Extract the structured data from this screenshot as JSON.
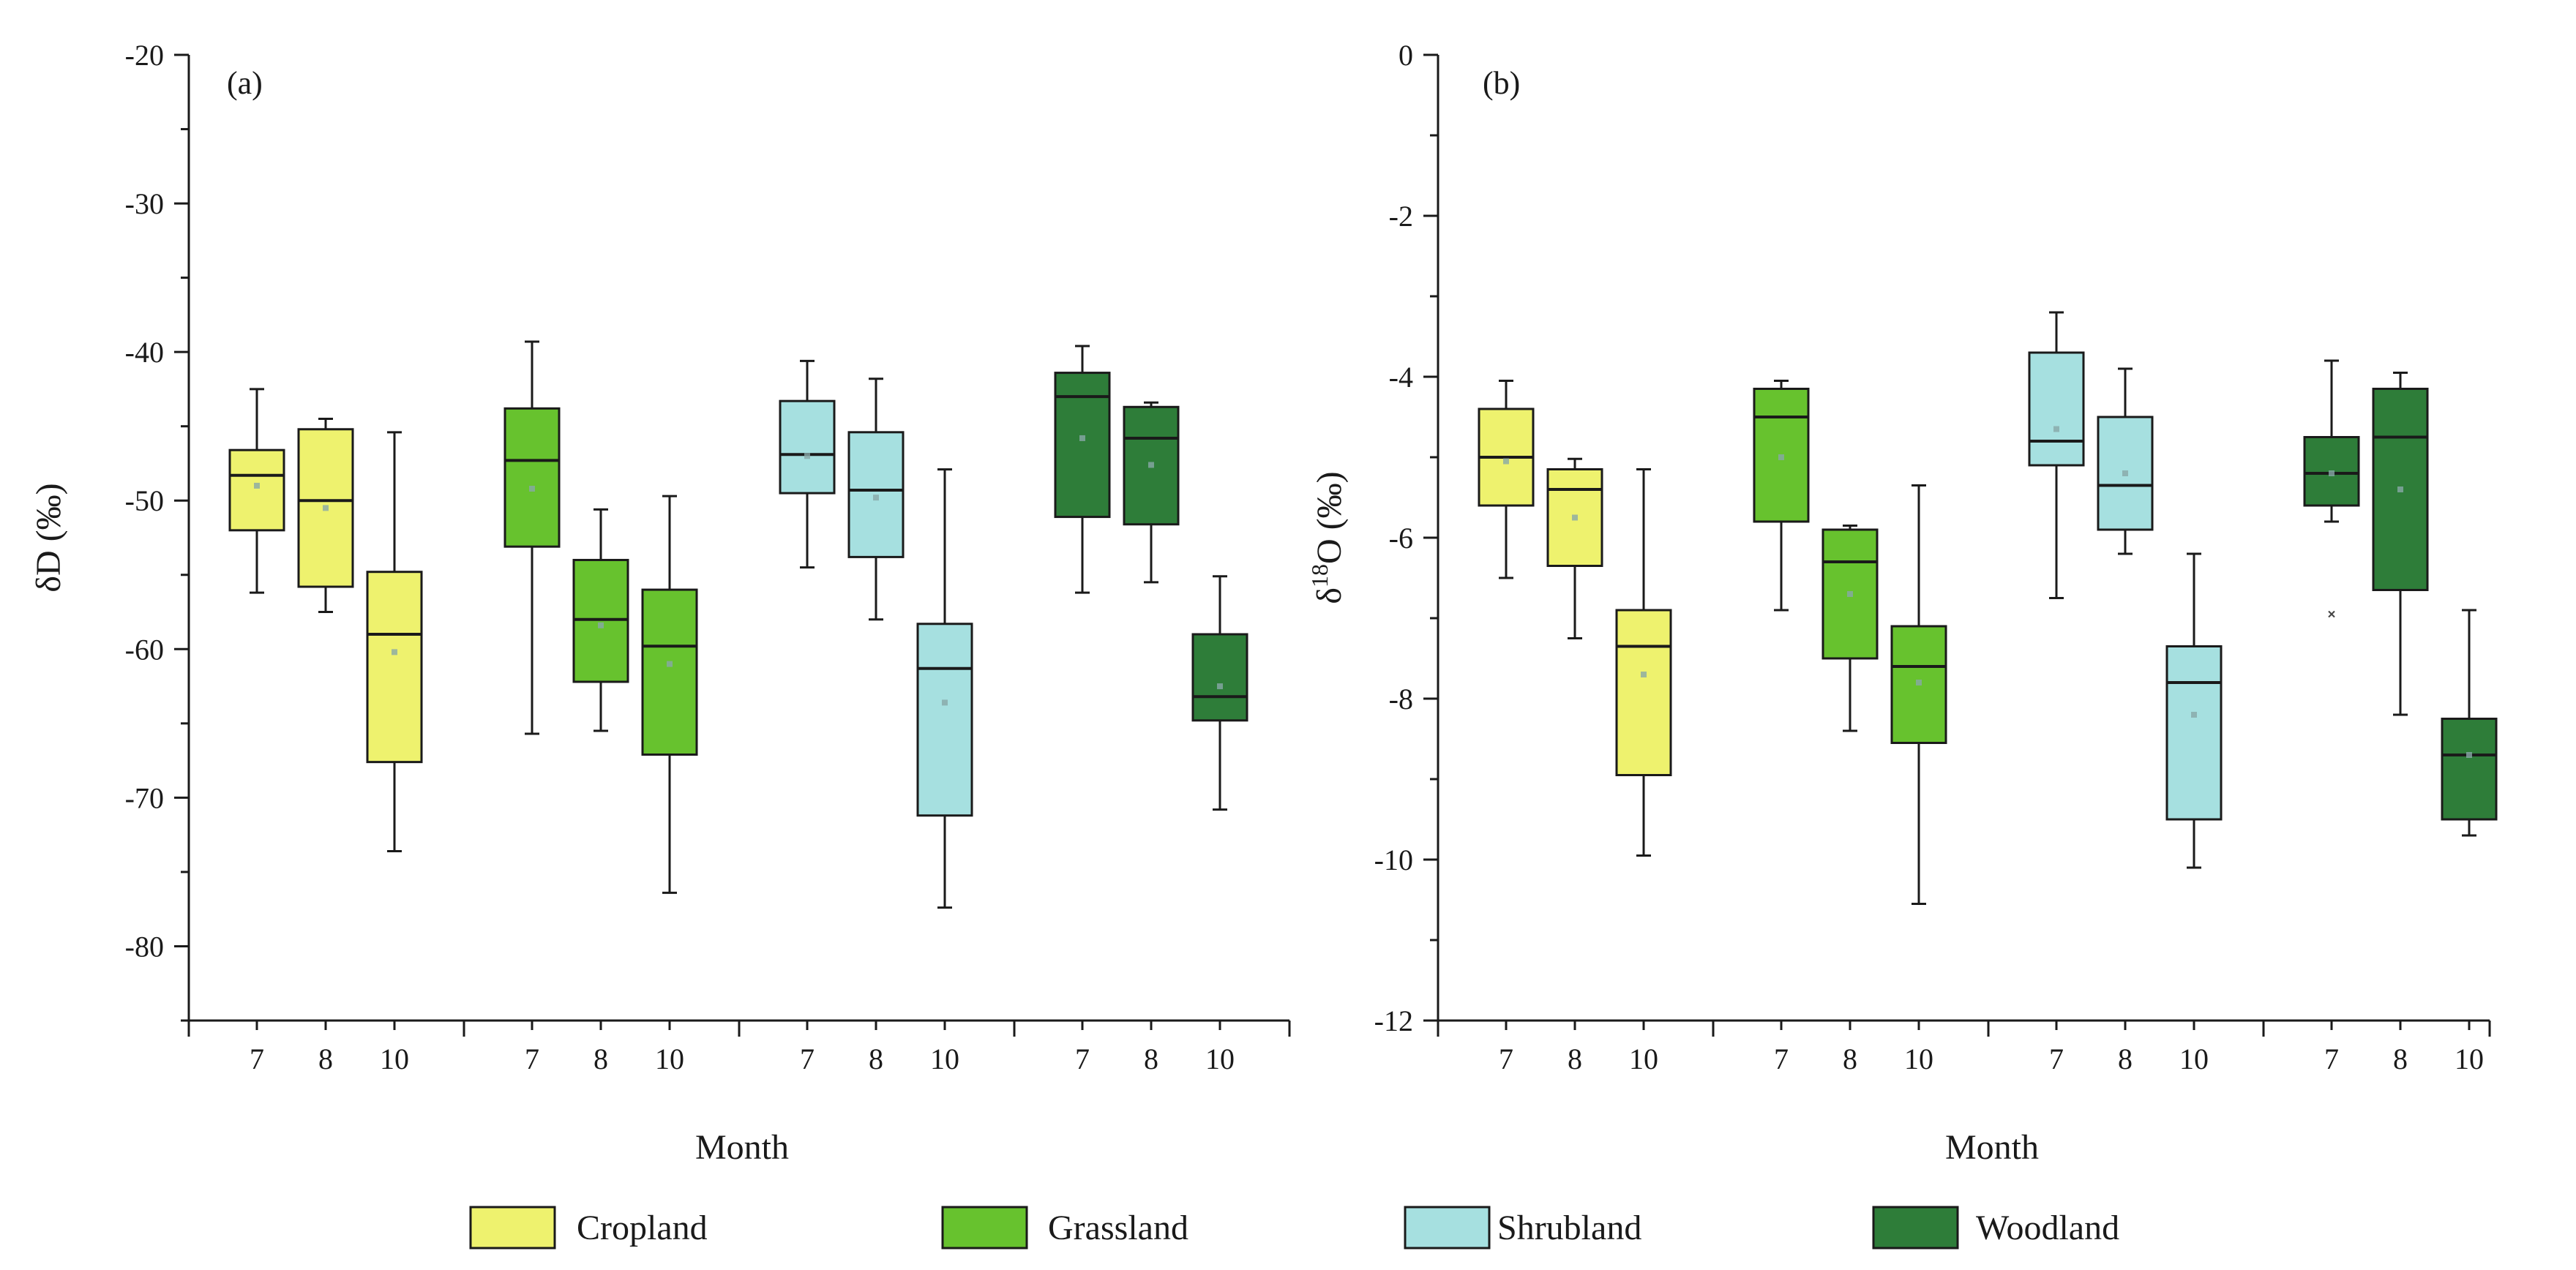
{
  "chart_data": [
    {
      "type": "box",
      "panel_label": "(a)",
      "ylabel": "δD (‰)",
      "xlabel": "Month",
      "ylim": [
        -85,
        -20
      ],
      "yticks": [
        -80,
        -70,
        -60,
        -50,
        -40,
        -30,
        -20
      ],
      "ytick_labels": [
        "-80",
        "-70",
        "-60",
        "-50",
        "-40",
        "-30",
        "-20"
      ],
      "minor_step": 5,
      "month_labels": [
        "7",
        "8",
        "10"
      ],
      "groups": [
        {
          "name": "Cropland",
          "color": "#eef26e",
          "boxes": [
            {
              "month": "7",
              "whisker_low": -56.2,
              "q1": -52.0,
              "median": -48.3,
              "q3": -46.6,
              "whisker_high": -42.5,
              "mean": -49.0
            },
            {
              "month": "8",
              "whisker_low": -57.5,
              "q1": -55.8,
              "median": -50.0,
              "q3": -45.2,
              "whisker_high": -44.5,
              "mean": -50.5
            },
            {
              "month": "10",
              "whisker_low": -73.6,
              "q1": -67.6,
              "median": -59.0,
              "q3": -54.8,
              "whisker_high": -45.4,
              "mean": -60.2
            }
          ]
        },
        {
          "name": "Grassland",
          "color": "#67c22e",
          "boxes": [
            {
              "month": "7",
              "whisker_low": -65.7,
              "q1": -53.1,
              "median": -47.3,
              "q3": -43.8,
              "whisker_high": -39.3,
              "mean": -49.2
            },
            {
              "month": "8",
              "whisker_low": -65.5,
              "q1": -62.2,
              "median": -58.0,
              "q3": -54.0,
              "whisker_high": -50.6,
              "mean": -58.4
            },
            {
              "month": "10",
              "whisker_low": -76.4,
              "q1": -67.1,
              "median": -59.8,
              "q3": -56.0,
              "whisker_high": -49.7,
              "mean": -61.0
            }
          ]
        },
        {
          "name": "Shrubland",
          "color": "#a6e0e0",
          "boxes": [
            {
              "month": "7",
              "whisker_low": -54.5,
              "q1": -49.5,
              "median": -46.9,
              "q3": -43.3,
              "whisker_high": -40.6,
              "mean": -47.0
            },
            {
              "month": "8",
              "whisker_low": -58.0,
              "q1": -53.8,
              "median": -49.3,
              "q3": -45.4,
              "whisker_high": -41.8,
              "mean": -49.8
            },
            {
              "month": "10",
              "whisker_low": -77.4,
              "q1": -71.2,
              "median": -61.3,
              "q3": -58.3,
              "whisker_high": -47.9,
              "mean": -63.6
            }
          ]
        },
        {
          "name": "Woodland",
          "color": "#2e7d39",
          "boxes": [
            {
              "month": "7",
              "whisker_low": -56.2,
              "q1": -51.1,
              "median": -43.0,
              "q3": -41.4,
              "whisker_high": -39.6,
              "mean": -45.8
            },
            {
              "month": "8",
              "whisker_low": -55.5,
              "q1": -51.6,
              "median": -45.8,
              "q3": -43.7,
              "whisker_high": -43.4,
              "mean": -47.6
            },
            {
              "month": "10",
              "whisker_low": -70.8,
              "q1": -64.8,
              "median": -63.2,
              "q3": -59.0,
              "whisker_high": -55.1,
              "mean": -62.5
            }
          ]
        }
      ]
    },
    {
      "type": "box",
      "panel_label": "(b)",
      "ylabel": "δ18O (‰)",
      "ylabel_base": "δ",
      "ylabel_sup": "18",
      "ylabel_rest": "O (‰)",
      "xlabel": "Month",
      "ylim": [
        -12,
        0
      ],
      "yticks": [
        -12,
        -10,
        -8,
        -6,
        -4,
        -2,
        0
      ],
      "ytick_labels": [
        "-12",
        "-10",
        "-8",
        "-6",
        "-4",
        "-2",
        "0"
      ],
      "minor_step": 1,
      "month_labels": [
        "7",
        "8",
        "10"
      ],
      "groups": [
        {
          "name": "Cropland",
          "color": "#eef26e",
          "boxes": [
            {
              "month": "7",
              "whisker_low": -6.5,
              "q1": -5.6,
              "median": -5.0,
              "q3": -4.4,
              "whisker_high": -4.05,
              "mean": -5.05
            },
            {
              "month": "8",
              "whisker_low": -7.25,
              "q1": -6.35,
              "median": -5.4,
              "q3": -5.15,
              "whisker_high": -5.02,
              "mean": -5.75
            },
            {
              "month": "10",
              "whisker_low": -9.95,
              "q1": -8.95,
              "median": -7.35,
              "q3": -6.9,
              "whisker_high": -5.15,
              "mean": -7.7
            }
          ]
        },
        {
          "name": "Grassland",
          "color": "#67c22e",
          "boxes": [
            {
              "month": "7",
              "whisker_low": -6.9,
              "q1": -5.8,
              "median": -4.5,
              "q3": -4.15,
              "whisker_high": -4.05,
              "mean": -5.0
            },
            {
              "month": "8",
              "whisker_low": -8.4,
              "q1": -7.5,
              "median": -6.3,
              "q3": -5.9,
              "whisker_high": -5.85,
              "mean": -6.7
            },
            {
              "month": "10",
              "whisker_low": -10.55,
              "q1": -8.55,
              "median": -7.6,
              "q3": -7.1,
              "whisker_high": -5.35,
              "mean": -7.8
            }
          ]
        },
        {
          "name": "Shrubland",
          "color": "#a6e0e0",
          "boxes": [
            {
              "month": "7",
              "whisker_low": -6.75,
              "q1": -5.1,
              "median": -4.8,
              "q3": -3.7,
              "whisker_high": -3.2,
              "mean": -4.65
            },
            {
              "month": "8",
              "whisker_low": -6.2,
              "q1": -5.9,
              "median": -5.35,
              "q3": -4.5,
              "whisker_high": -3.9,
              "mean": -5.2
            },
            {
              "month": "10",
              "whisker_low": -10.1,
              "q1": -9.5,
              "median": -7.8,
              "q3": -7.35,
              "whisker_high": -6.2,
              "mean": -8.2
            }
          ]
        },
        {
          "name": "Woodland",
          "color": "#2e7d39",
          "boxes": [
            {
              "month": "7",
              "whisker_low": -5.8,
              "q1": -5.6,
              "median": -5.2,
              "q3": -4.75,
              "whisker_high": -3.8,
              "mean": -5.2,
              "outliers": [
                -6.95
              ]
            },
            {
              "month": "8",
              "whisker_low": -8.2,
              "q1": -6.65,
              "median": -4.75,
              "q3": -4.15,
              "whisker_high": -3.95,
              "mean": -5.4
            },
            {
              "month": "10",
              "whisker_low": -9.7,
              "q1": -9.5,
              "median": -8.7,
              "q3": -8.25,
              "whisker_high": -6.9,
              "mean": -8.7
            }
          ]
        }
      ]
    }
  ],
  "legend": {
    "position": "bottom",
    "items": [
      {
        "label": "Cropland",
        "color": "#eef26e"
      },
      {
        "label": "Grassland",
        "color": "#67c22e"
      },
      {
        "label": "Shrubland",
        "color": "#a6e0e0"
      },
      {
        "label": "Woodland",
        "color": "#2e7d39"
      }
    ]
  }
}
